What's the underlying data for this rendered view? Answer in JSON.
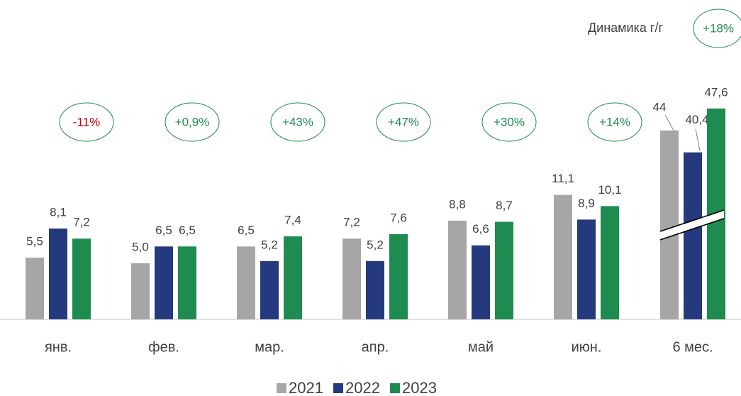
{
  "chart_data": {
    "type": "bar",
    "categories": [
      "янв.",
      "фев.",
      "мар.",
      "апр.",
      "май",
      "июн.",
      "6 мес."
    ],
    "series": [
      {
        "name": "2021",
        "color": "#a6a6a6",
        "values": [
          5.5,
          5.0,
          6.5,
          7.2,
          8.8,
          11.1,
          44
        ],
        "value_labels": [
          "5,5",
          "5,0",
          "6,5",
          "7,2",
          "8,8",
          "11,1",
          "44"
        ]
      },
      {
        "name": "2022",
        "color": "#253a7e",
        "values": [
          8.1,
          6.5,
          5.2,
          5.2,
          6.6,
          8.9,
          40.4
        ],
        "value_labels": [
          "8,1",
          "6,5",
          "5,2",
          "5,2",
          "6,6",
          "8,9",
          "40,4"
        ]
      },
      {
        "name": "2023",
        "color": "#1e8c50",
        "values": [
          7.2,
          6.5,
          7.4,
          7.6,
          8.7,
          10.1,
          47.6
        ],
        "value_labels": [
          "7,2",
          "6,5",
          "7,4",
          "7,6",
          "8,7",
          "10,1",
          "47,6"
        ]
      }
    ],
    "dynamics": [
      "-11%",
      "+0,9%",
      "+43%",
      "+47%",
      "+30%",
      "+14%"
    ],
    "dynamics_title": "Динамика г/г",
    "dynamics_total": "+18%",
    "ylim": [
      0,
      25
    ],
    "y2lim": [
      13,
      59
    ],
    "legend": "bottom"
  }
}
